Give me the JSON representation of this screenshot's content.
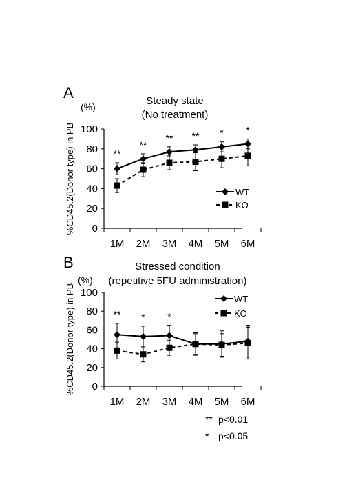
{
  "chart_data": [
    {
      "type": "line",
      "panel": "A",
      "title": [
        "Steady state",
        "(No treatment)"
      ],
      "unit": "(%)",
      "ylabel": "%CD45.2(Donor type) in PB",
      "ylim": [
        0,
        100
      ],
      "yticks": [
        0,
        20,
        40,
        60,
        80,
        100
      ],
      "categories": [
        "1M",
        "2M",
        "3M",
        "4M",
        "5M",
        "6M"
      ],
      "legend_position": "right",
      "series": [
        {
          "name": "WT",
          "marker": "diamond",
          "line": "solid",
          "values": [
            60,
            70,
            77,
            79,
            82,
            85
          ],
          "error": [
            6,
            5,
            5,
            5,
            5,
            5
          ]
        },
        {
          "name": "KO",
          "marker": "square",
          "line": "dashed",
          "values": [
            43,
            59,
            66,
            67,
            70,
            73
          ],
          "error": [
            7,
            7,
            7,
            9,
            9,
            10
          ]
        }
      ],
      "significance": [
        "**",
        "**",
        "**",
        "**",
        "*",
        "*"
      ]
    },
    {
      "type": "line",
      "panel": "B",
      "title": [
        "Stressed condition",
        "(repetitive 5FU administration)"
      ],
      "unit": "(%)",
      "ylabel": "%CD45.2(Donor type) in PB",
      "ylim": [
        0,
        100
      ],
      "yticks": [
        0,
        20,
        40,
        60,
        80,
        100
      ],
      "categories": [
        "1M",
        "2M",
        "3M",
        "4M",
        "5M",
        "6M"
      ],
      "legend_position": "top-right",
      "series": [
        {
          "name": "WT",
          "marker": "diamond",
          "line": "solid",
          "values": [
            55,
            53,
            54,
            45,
            45,
            48
          ],
          "error": [
            12,
            11,
            11,
            11,
            14,
            17
          ]
        },
        {
          "name": "KO",
          "marker": "square",
          "line": "dashed",
          "values": [
            38,
            34,
            41,
            45,
            44,
            46
          ],
          "error": [
            9,
            8,
            8,
            12,
            12,
            17
          ]
        }
      ],
      "significance": [
        "**",
        "*",
        "*",
        "",
        "",
        ""
      ]
    }
  ],
  "footnotes": [
    {
      "symbol": "**",
      "text": "p<0.01"
    },
    {
      "symbol": "*",
      "text": "p<0.05"
    }
  ]
}
